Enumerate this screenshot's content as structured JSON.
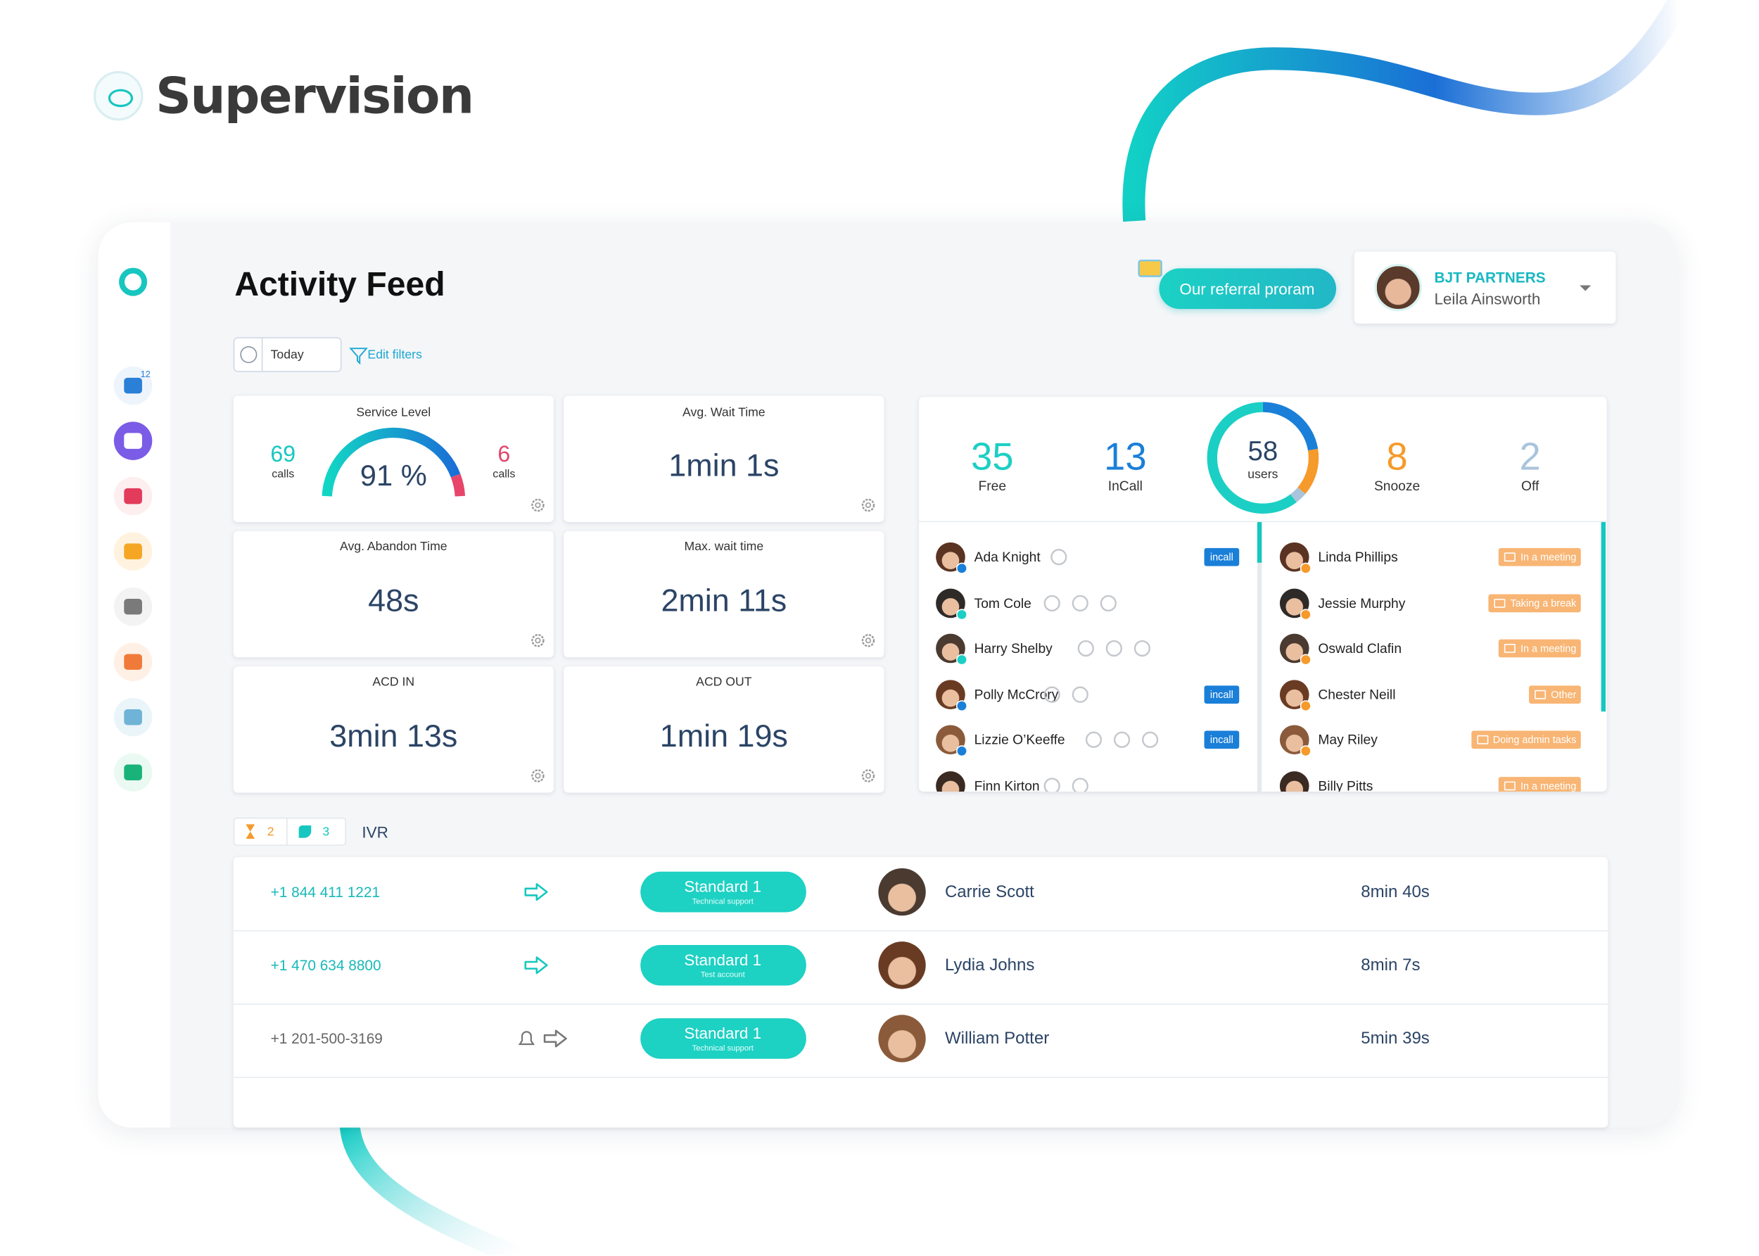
{
  "header": {
    "title": "Supervision"
  },
  "app": {
    "sidebar": {
      "phone_badge": "12"
    },
    "page_title": "Activity Feed",
    "referral_button": "Our referral proram",
    "account": {
      "company": "BJT PARTNERS",
      "user": "Leila Ainsworth"
    },
    "filters": {
      "period": "Today",
      "edit": "Edit filters"
    },
    "metrics": [
      {
        "title": "Service Level",
        "value": "91 %",
        "left": {
          "count": 69,
          "unit": "calls"
        },
        "right": {
          "count": 6,
          "unit": "calls"
        }
      },
      {
        "title": "Avg. Wait Time",
        "value": "1min 1s"
      },
      {
        "title": "Avg. Abandon Time",
        "value": "48s"
      },
      {
        "title": "Max. wait time",
        "value": "2min 11s"
      },
      {
        "title": "ACD IN",
        "value": "3min 13s"
      },
      {
        "title": "ACD OUT",
        "value": "1min 19s"
      }
    ],
    "users": {
      "total": 58,
      "total_label": "users",
      "states": [
        {
          "count": 35,
          "label": "Free",
          "color": "#1ccfc4"
        },
        {
          "count": 13,
          "label": "InCall",
          "color": "#1a7fd8"
        },
        {
          "count": 8,
          "label": "Snooze",
          "color": "#f59a2b"
        },
        {
          "count": 2,
          "label": "Off",
          "color": "#a9c4dc"
        }
      ]
    },
    "agents_left": [
      {
        "name": "Ada Knight",
        "status": "incall"
      },
      {
        "name": "Tom Cole"
      },
      {
        "name": "Harry Shelby"
      },
      {
        "name": "Polly McCrory",
        "status": "incall"
      },
      {
        "name": "Lizzie O’Keeffe",
        "status": "incall"
      },
      {
        "name": "Finn Kirton"
      }
    ],
    "agents_right": [
      {
        "name": "Linda Phillips",
        "status": "In a meeting"
      },
      {
        "name": "Jessie Murphy",
        "status": "Taking a break"
      },
      {
        "name": "Oswald Clafin",
        "status": "In a meeting"
      },
      {
        "name": "Chester Neill",
        "status": "Other"
      },
      {
        "name": "May Riley",
        "status": "Doing admin tasks"
      },
      {
        "name": "Billy Pitts",
        "status": "In a meeting"
      }
    ],
    "queue": {
      "waiting": 2,
      "active": 3,
      "label": "IVR"
    },
    "calls": [
      {
        "phone": "+1 844 411 1221",
        "queue": "Standard 1",
        "queue_detail": "Technical support",
        "agent": "Carrie Scott",
        "duration": "8min 40s"
      },
      {
        "phone": "+1 470 634 8800",
        "queue": "Standard 1",
        "queue_detail": "Test account",
        "agent": "Lydia Johns",
        "duration": "8min 7s"
      },
      {
        "phone": "+1 201-500-3169",
        "queue": "Standard 1",
        "queue_detail": "Technical support",
        "agent": "William Potter",
        "duration": "5min 39s"
      }
    ]
  }
}
